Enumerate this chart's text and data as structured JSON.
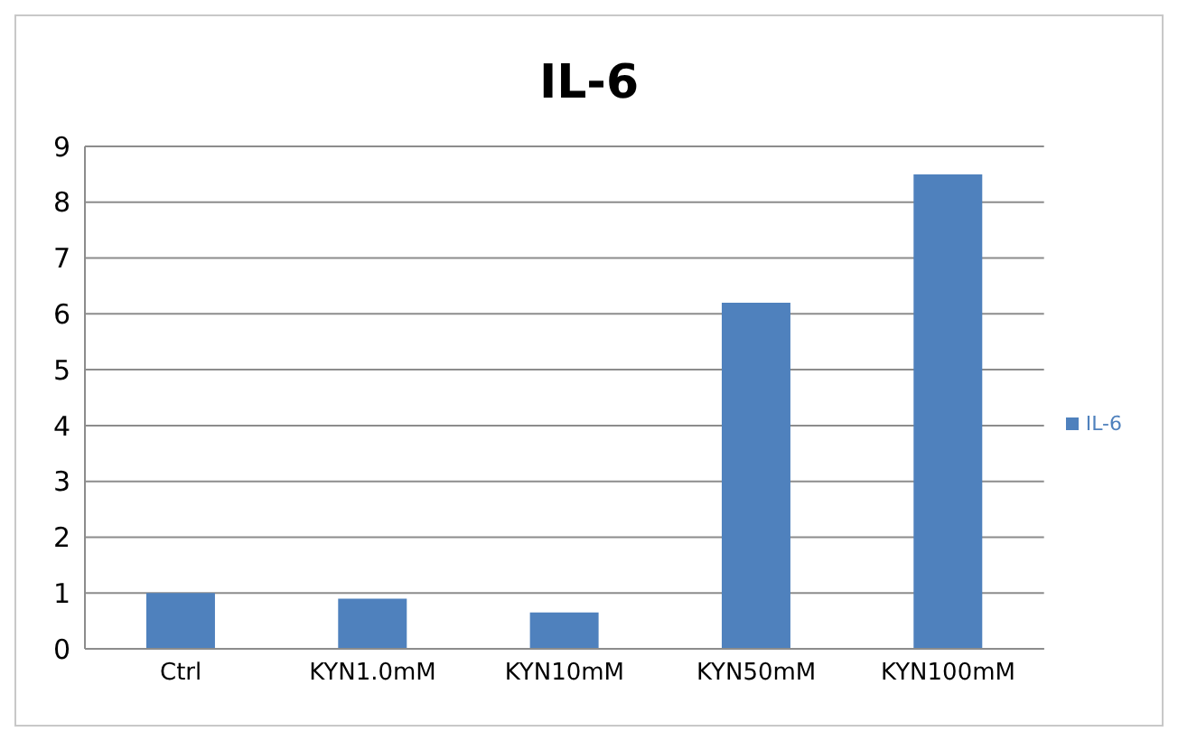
{
  "chart_data": {
    "type": "bar",
    "title": "IL-6",
    "categories": [
      "Ctrl",
      "KYN1.0mM",
      "KYN10mM",
      "KYN50mM",
      "KYN100mM"
    ],
    "series": [
      {
        "name": "IL-6",
        "color": "#4f81bd",
        "values": [
          1.0,
          0.9,
          0.65,
          6.2,
          8.5
        ]
      }
    ],
    "ylim": [
      0,
      9
    ],
    "yticks": [
      0,
      1,
      2,
      3,
      4,
      5,
      6,
      7,
      8,
      9
    ],
    "grid": "y",
    "legend": "right"
  }
}
